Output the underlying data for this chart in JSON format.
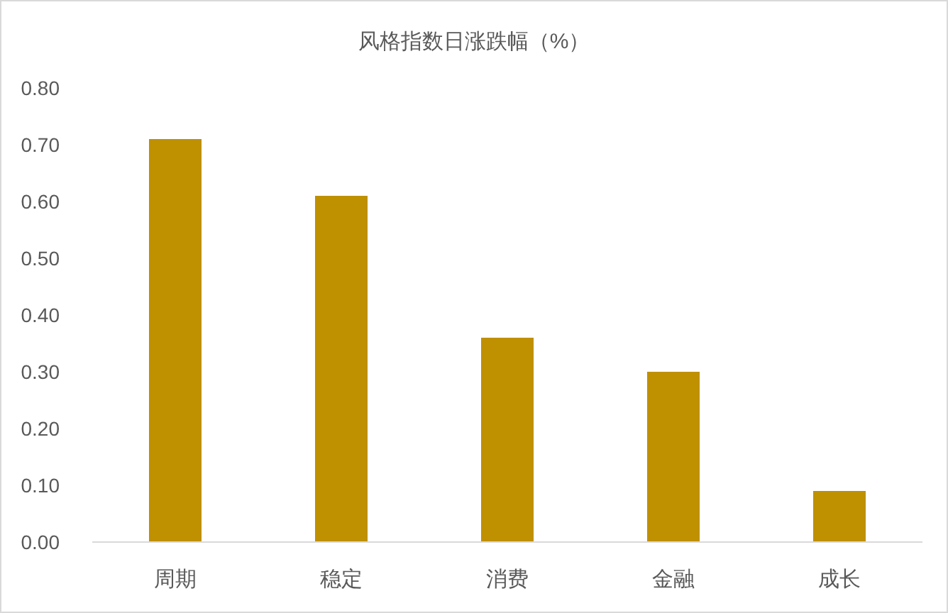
{
  "chart_data": {
    "type": "bar",
    "title": "风格指数日涨跌幅（%）",
    "categories": [
      "周期",
      "稳定",
      "消费",
      "金融",
      "成长"
    ],
    "values": [
      0.71,
      0.61,
      0.36,
      0.3,
      0.09
    ],
    "color": "#bf9000",
    "ylim": [
      0,
      0.8
    ],
    "yticks": [
      {
        "value": 0,
        "label": "0.00"
      },
      {
        "value": 0.1,
        "label": "0.10"
      },
      {
        "value": 0.2,
        "label": "0.20"
      },
      {
        "value": 0.3,
        "label": "0.30"
      },
      {
        "value": 0.4,
        "label": "0.40"
      },
      {
        "value": 0.5,
        "label": "0.50"
      },
      {
        "value": 0.6,
        "label": "0.60"
      },
      {
        "value": 0.7,
        "label": "0.70"
      },
      {
        "value": 0.8,
        "label": "0.80"
      }
    ],
    "grid": false
  }
}
